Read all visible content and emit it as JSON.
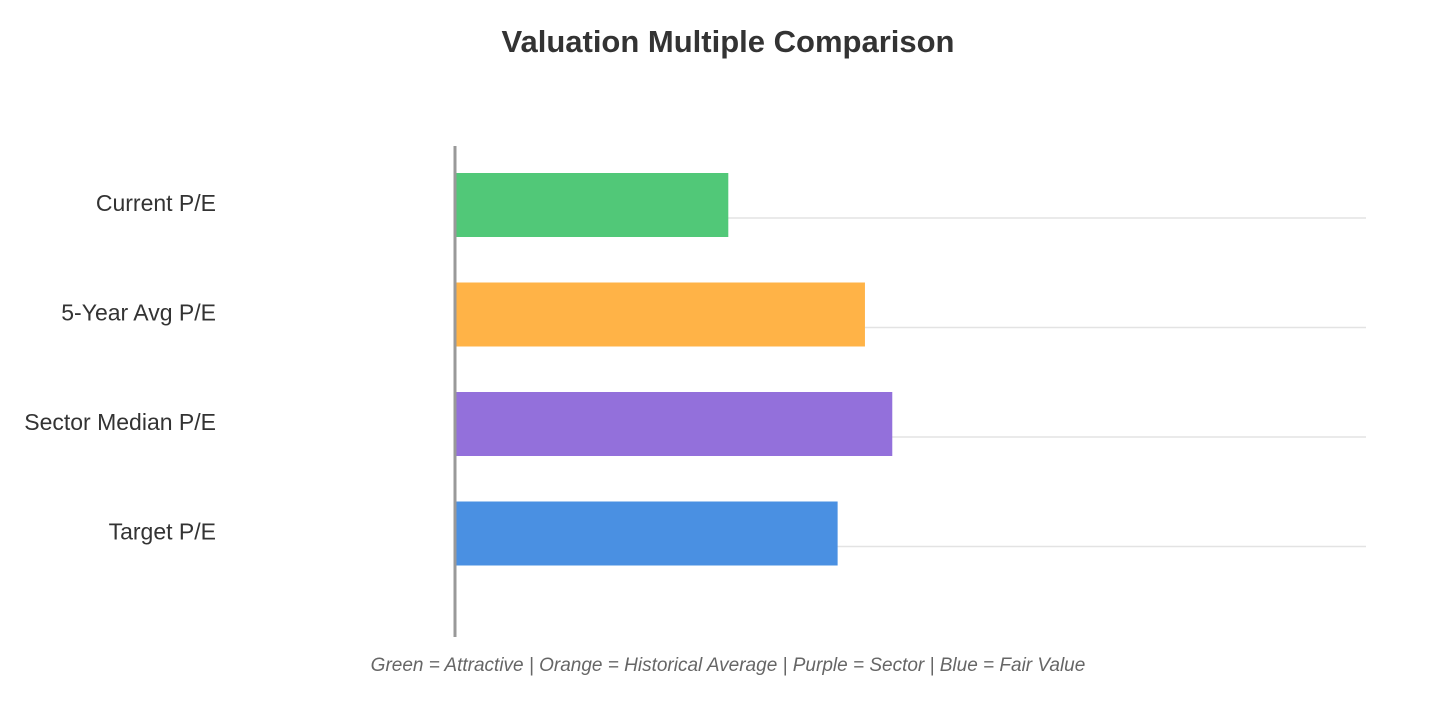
{
  "chart_data": {
    "type": "bar",
    "orientation": "horizontal",
    "title": "Valuation Multiple Comparison",
    "caption": "Green = Attractive | Orange = Historical Average | Purple = Sector | Blue = Fair Value",
    "categories": [
      "Current P/E",
      "5-Year Avg P/E",
      "Sector Median P/E",
      "Target P/E"
    ],
    "values": [
      15,
      22.5,
      24,
      21
    ],
    "xlim": [
      0,
      50
    ],
    "colors": [
      "#51c878",
      "#ffb347",
      "#9370db",
      "#4a90e2"
    ],
    "grid": true,
    "legend": "none"
  }
}
